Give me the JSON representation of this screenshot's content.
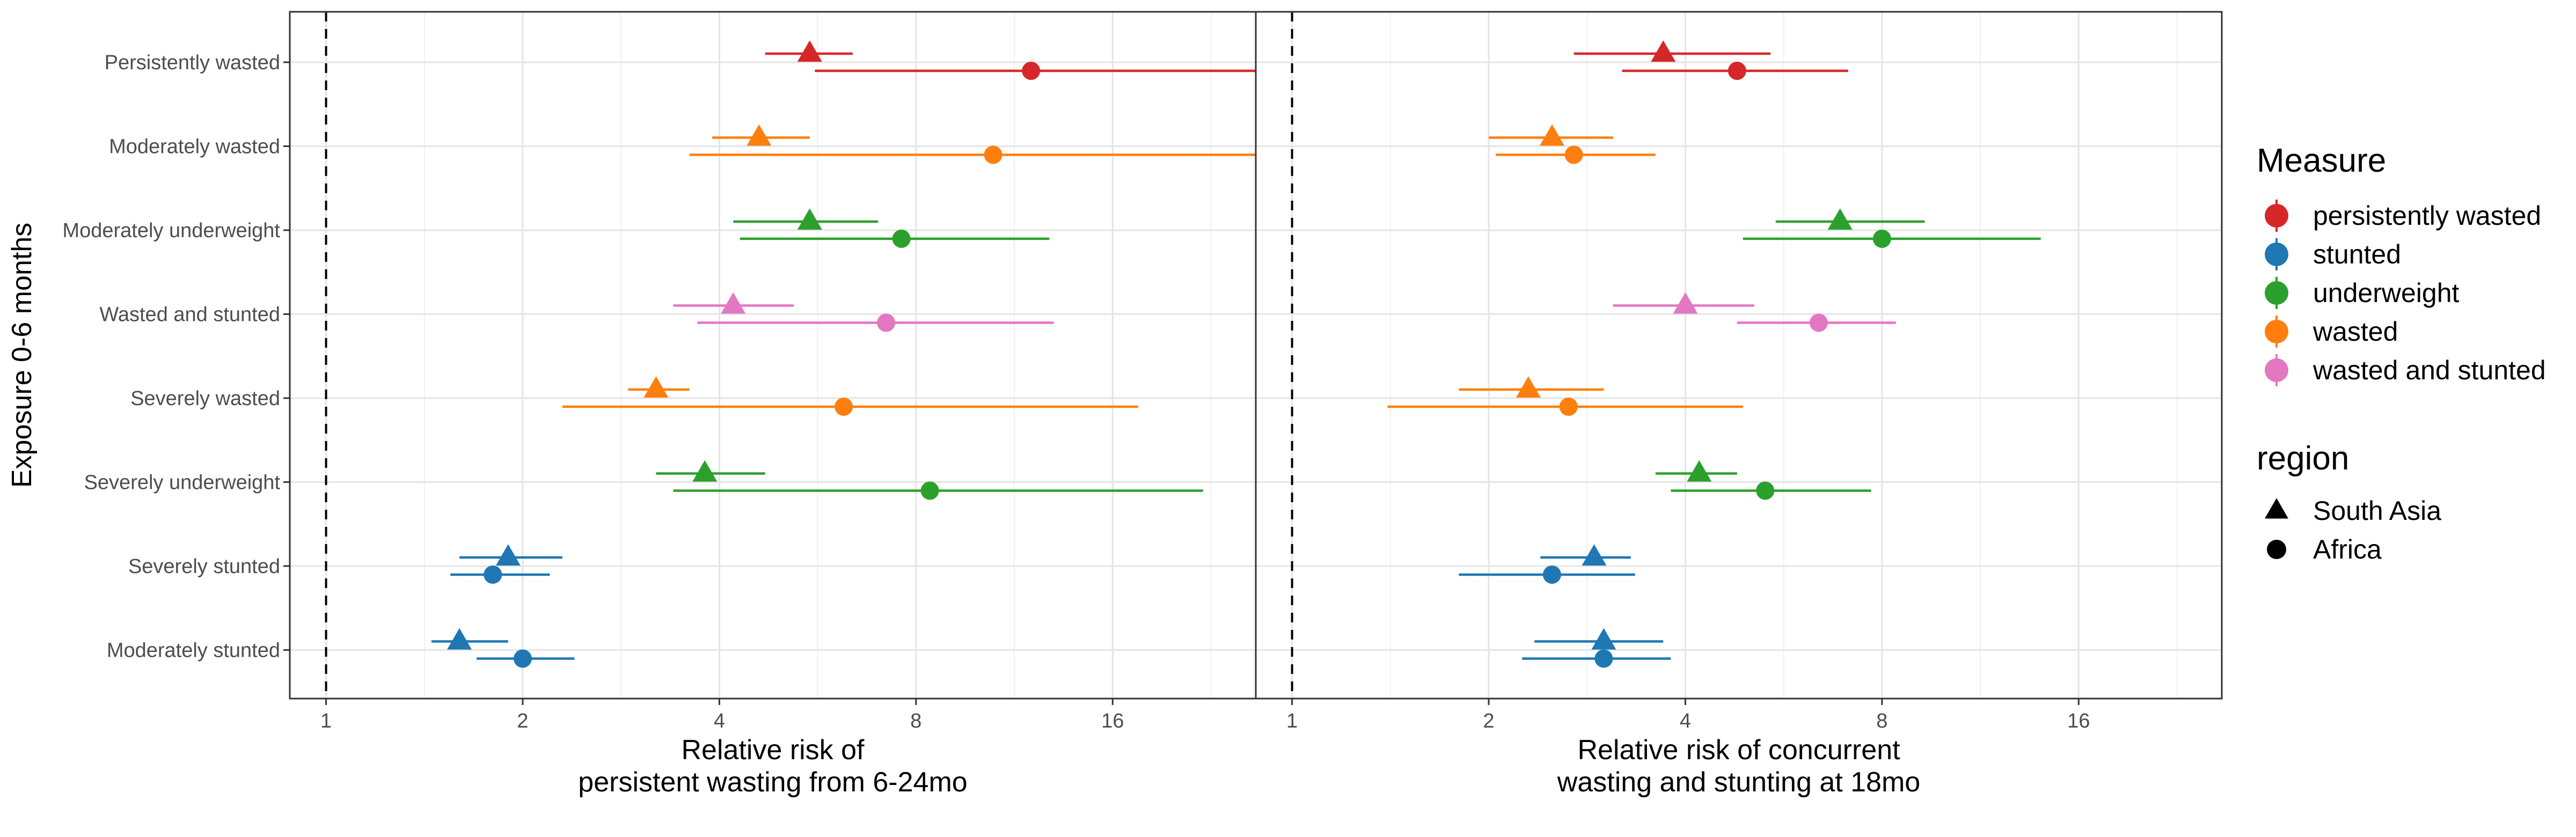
{
  "chart_data": {
    "type": "scatter",
    "y_axis_title": "Exposure 0-6 months",
    "x_scale": "log2",
    "x_ticks": [
      1,
      2,
      4,
      8,
      16
    ],
    "x_range": [
      0.88,
      26.5
    ],
    "reference_line": 1,
    "grid": true,
    "legend_position": "right",
    "categories": [
      "Persistently wasted",
      "Moderately wasted",
      "Moderately underweight",
      "Wasted and stunted",
      "Severely wasted",
      "Severely underweight",
      "Severely stunted",
      "Moderately stunted"
    ],
    "measures": [
      {
        "name": "persistently wasted",
        "color": "#d62728"
      },
      {
        "name": "stunted",
        "color": "#1f77b4"
      },
      {
        "name": "underweight",
        "color": "#2ca02c"
      },
      {
        "name": "wasted",
        "color": "#ff7f0e"
      },
      {
        "name": "wasted and stunted",
        "color": "#e377c2"
      }
    ],
    "measure_title": "Measure",
    "region_title": "region",
    "regions": [
      {
        "name": "South Asia",
        "shape": "triangle"
      },
      {
        "name": "Africa",
        "shape": "circle"
      }
    ],
    "panels": [
      {
        "xlabel": [
          "Relative risk of",
          "persistent wasting from 6-24mo"
        ],
        "points": [
          {
            "category": "Persistently wasted",
            "measure": "persistently wasted",
            "region": "South Asia",
            "est": 5.5,
            "lo": 4.7,
            "hi": 6.4
          },
          {
            "category": "Persistently wasted",
            "measure": "persistently wasted",
            "region": "Africa",
            "est": 12.0,
            "lo": 5.6,
            "hi": 26.5
          },
          {
            "category": "Moderately wasted",
            "measure": "wasted",
            "region": "South Asia",
            "est": 4.6,
            "lo": 3.9,
            "hi": 5.5
          },
          {
            "category": "Moderately wasted",
            "measure": "wasted",
            "region": "Africa",
            "est": 10.5,
            "lo": 3.6,
            "hi": 26.5
          },
          {
            "category": "Moderately underweight",
            "measure": "underweight",
            "region": "South Asia",
            "est": 5.5,
            "lo": 4.2,
            "hi": 7.0
          },
          {
            "category": "Moderately underweight",
            "measure": "underweight",
            "region": "Africa",
            "est": 7.6,
            "lo": 4.3,
            "hi": 12.8
          },
          {
            "category": "Wasted and stunted",
            "measure": "wasted and stunted",
            "region": "South Asia",
            "est": 4.2,
            "lo": 3.4,
            "hi": 5.2
          },
          {
            "category": "Wasted and stunted",
            "measure": "wasted and stunted",
            "region": "Africa",
            "est": 7.2,
            "lo": 3.7,
            "hi": 13.0
          },
          {
            "category": "Severely wasted",
            "measure": "wasted",
            "region": "South Asia",
            "est": 3.2,
            "lo": 2.9,
            "hi": 3.6
          },
          {
            "category": "Severely wasted",
            "measure": "wasted",
            "region": "Africa",
            "est": 6.2,
            "lo": 2.3,
            "hi": 17.5
          },
          {
            "category": "Severely underweight",
            "measure": "underweight",
            "region": "South Asia",
            "est": 3.8,
            "lo": 3.2,
            "hi": 4.7
          },
          {
            "category": "Severely underweight",
            "measure": "underweight",
            "region": "Africa",
            "est": 8.4,
            "lo": 3.4,
            "hi": 22.0
          },
          {
            "category": "Severely stunted",
            "measure": "stunted",
            "region": "South Asia",
            "est": 1.9,
            "lo": 1.6,
            "hi": 2.3
          },
          {
            "category": "Severely stunted",
            "measure": "stunted",
            "region": "Africa",
            "est": 1.8,
            "lo": 1.55,
            "hi": 2.2
          },
          {
            "category": "Moderately stunted",
            "measure": "stunted",
            "region": "South Asia",
            "est": 1.6,
            "lo": 1.45,
            "hi": 1.9
          },
          {
            "category": "Moderately stunted",
            "measure": "stunted",
            "region": "Africa",
            "est": 2.0,
            "lo": 1.7,
            "hi": 2.4
          }
        ]
      },
      {
        "xlabel": [
          "Relative risk of concurrent",
          "wasting and stunting at 18mo"
        ],
        "points": [
          {
            "category": "Persistently wasted",
            "measure": "persistently wasted",
            "region": "South Asia",
            "est": 3.7,
            "lo": 2.7,
            "hi": 5.4
          },
          {
            "category": "Persistently wasted",
            "measure": "persistently wasted",
            "region": "Africa",
            "est": 4.8,
            "lo": 3.2,
            "hi": 7.1
          },
          {
            "category": "Moderately wasted",
            "measure": "wasted",
            "region": "South Asia",
            "est": 2.5,
            "lo": 2.0,
            "hi": 3.1
          },
          {
            "category": "Moderately wasted",
            "measure": "wasted",
            "region": "Africa",
            "est": 2.7,
            "lo": 2.05,
            "hi": 3.6
          },
          {
            "category": "Moderately underweight",
            "measure": "underweight",
            "region": "South Asia",
            "est": 6.9,
            "lo": 5.5,
            "hi": 9.3
          },
          {
            "category": "Moderately underweight",
            "measure": "underweight",
            "region": "Africa",
            "est": 8.0,
            "lo": 4.9,
            "hi": 14.0
          },
          {
            "category": "Wasted and stunted",
            "measure": "wasted and stunted",
            "region": "South Asia",
            "est": 4.0,
            "lo": 3.1,
            "hi": 5.1
          },
          {
            "category": "Wasted and stunted",
            "measure": "wasted and stunted",
            "region": "Africa",
            "est": 6.4,
            "lo": 4.8,
            "hi": 8.4
          },
          {
            "category": "Severely wasted",
            "measure": "wasted",
            "region": "South Asia",
            "est": 2.3,
            "lo": 1.8,
            "hi": 3.0
          },
          {
            "category": "Severely wasted",
            "measure": "wasted",
            "region": "Africa",
            "est": 2.65,
            "lo": 1.4,
            "hi": 4.9
          },
          {
            "category": "Severely underweight",
            "measure": "underweight",
            "region": "South Asia",
            "est": 4.2,
            "lo": 3.6,
            "hi": 4.8
          },
          {
            "category": "Severely underweight",
            "measure": "underweight",
            "region": "Africa",
            "est": 5.3,
            "lo": 3.8,
            "hi": 7.7
          },
          {
            "category": "Severely stunted",
            "measure": "stunted",
            "region": "South Asia",
            "est": 2.9,
            "lo": 2.4,
            "hi": 3.3
          },
          {
            "category": "Severely stunted",
            "measure": "stunted",
            "region": "Africa",
            "est": 2.5,
            "lo": 1.8,
            "hi": 3.35
          },
          {
            "category": "Moderately stunted",
            "measure": "stunted",
            "region": "South Asia",
            "est": 3.0,
            "lo": 2.35,
            "hi": 3.7
          },
          {
            "category": "Moderately stunted",
            "measure": "stunted",
            "region": "Africa",
            "est": 3.0,
            "lo": 2.25,
            "hi": 3.8
          }
        ]
      }
    ]
  }
}
